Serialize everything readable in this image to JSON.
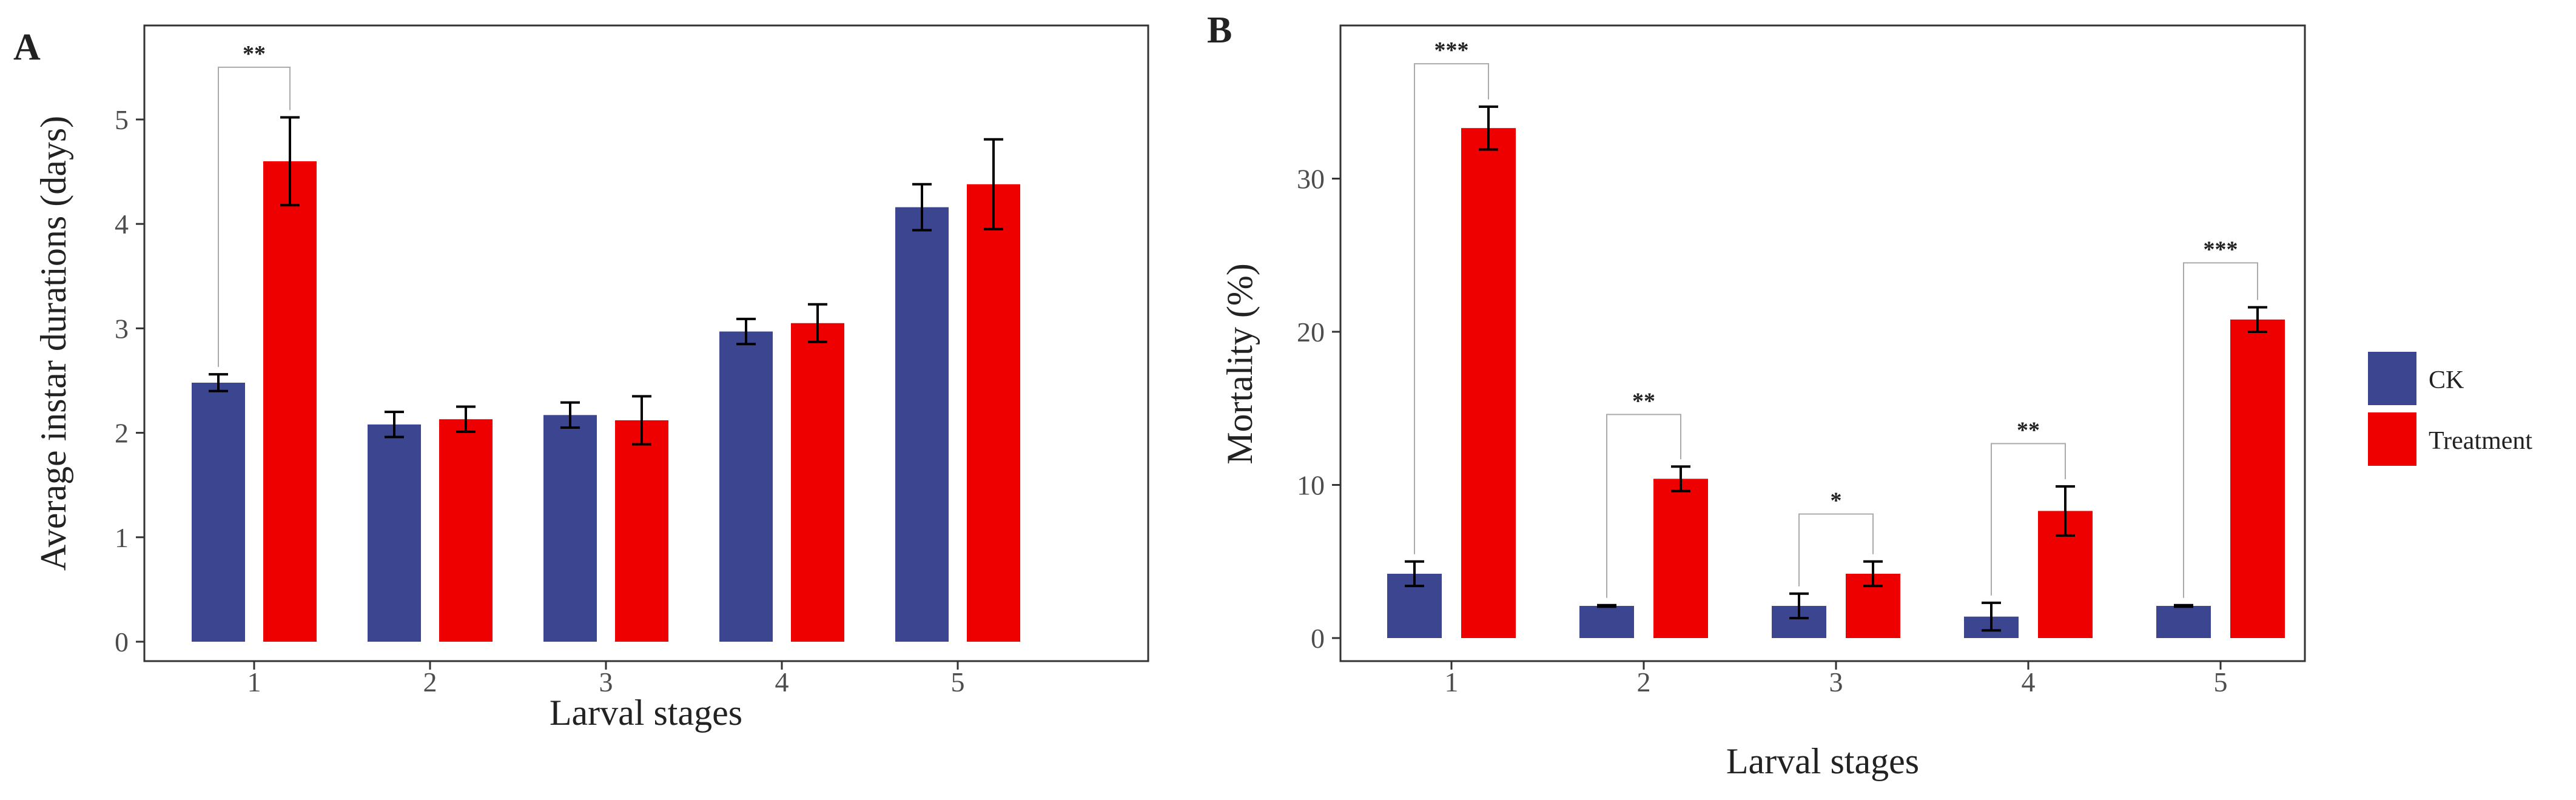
{
  "chart_data": [
    {
      "type": "bar",
      "panel_label": "A",
      "categories": [
        "1",
        "2",
        "3",
        "4",
        "5"
      ],
      "series": [
        {
          "name": "CK",
          "values": [
            2.48,
            2.08,
            2.17,
            2.97,
            4.16
          ],
          "errors": [
            0.08,
            0.12,
            0.12,
            0.12,
            0.22
          ]
        },
        {
          "name": "Treatment",
          "values": [
            4.6,
            2.13,
            2.12,
            3.05,
            4.38
          ],
          "errors": [
            0.42,
            0.12,
            0.23,
            0.18,
            0.43
          ]
        }
      ],
      "xlabel": "Larval stages",
      "ylabel": "Average instar durations (days)",
      "ylim": [
        0,
        5.9
      ],
      "yticks": [
        "0",
        "1",
        "2",
        "3",
        "4",
        "5"
      ],
      "annotations": [
        {
          "category": "1",
          "label": "**",
          "level": 5.5
        }
      ]
    },
    {
      "type": "bar",
      "panel_label": "B",
      "categories": [
        "1",
        "2",
        "3",
        "4",
        "5"
      ],
      "series": [
        {
          "name": "CK",
          "values": [
            4.2,
            2.1,
            2.1,
            1.4,
            2.1
          ],
          "errors": [
            0.8,
            0.05,
            0.8,
            0.9,
            0.05
          ]
        },
        {
          "name": "Treatment",
          "values": [
            33.3,
            10.4,
            4.2,
            8.3,
            20.8
          ],
          "errors": [
            1.4,
            0.8,
            0.8,
            1.6,
            0.8
          ]
        }
      ],
      "xlabel": "Larval stages",
      "ylabel": "Mortality (%)",
      "ylim": [
        0,
        40
      ],
      "yticks": [
        "0",
        "10",
        "20",
        "30"
      ],
      "annotations": [
        {
          "category": "1",
          "label": "***",
          "level": 37.5
        },
        {
          "category": "2",
          "label": "**",
          "level": 14.6
        },
        {
          "category": "3",
          "label": "*",
          "level": 8.1
        },
        {
          "category": "4",
          "label": "**",
          "level": 12.7
        },
        {
          "category": "5",
          "label": "***",
          "level": 24.5
        }
      ]
    }
  ],
  "legend": {
    "items": [
      {
        "label": "CK",
        "color": "#3c4690"
      },
      {
        "label": "Treatment",
        "color": "#ee0000"
      }
    ]
  }
}
